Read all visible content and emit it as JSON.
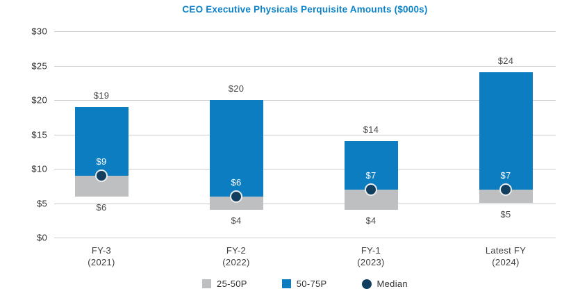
{
  "chart_data": {
    "type": "bar",
    "variant": "floating-range-columns",
    "title": "CEO Executive Physicals Perquisite Amounts ($000s)",
    "title_color": "#0e82c6",
    "ylim": [
      0,
      30
    ],
    "yticks": [
      0,
      5,
      10,
      15,
      20,
      25,
      30
    ],
    "ytick_labels": [
      "$0",
      "$5",
      "$10",
      "$15",
      "$20",
      "$25",
      "$30"
    ],
    "grid": true,
    "grid_color": "#cbcdd0",
    "categories": [
      {
        "line1": "FY-3",
        "line2": "(2021)"
      },
      {
        "line1": "FY-2",
        "line2": "(2022)"
      },
      {
        "line1": "FY-1",
        "line2": "(2023)"
      },
      {
        "line1": "Latest FY",
        "line2": "(2024)"
      }
    ],
    "bars": [
      {
        "p25": 6,
        "median": 9,
        "p75": 19,
        "p25_label": "$6",
        "median_label": "$9",
        "p75_label": "$19"
      },
      {
        "p25": 4,
        "median": 6,
        "p75": 20,
        "p25_label": "$4",
        "median_label": "$6",
        "p75_label": "$20"
      },
      {
        "p25": 4,
        "median": 7,
        "p75": 14,
        "p25_label": "$4",
        "median_label": "$7",
        "p75_label": "$14"
      },
      {
        "p25": 5,
        "median": 7,
        "p75": 24,
        "p25_label": "$5",
        "median_label": "$7",
        "p75_label": "$24"
      }
    ],
    "series_colors": {
      "p25_50": "#bdbfc1",
      "p50_75": "#0d7dc2",
      "median_dot": "#123f5f"
    },
    "legend": {
      "position": "bottom-center",
      "items": [
        {
          "label": "25-50P",
          "swatch": "square",
          "color": "#bdbfc1"
        },
        {
          "label": "50-75P",
          "swatch": "square",
          "color": "#0d7dc2"
        },
        {
          "label": "Median",
          "swatch": "circle",
          "color": "#123f5f"
        }
      ]
    }
  }
}
